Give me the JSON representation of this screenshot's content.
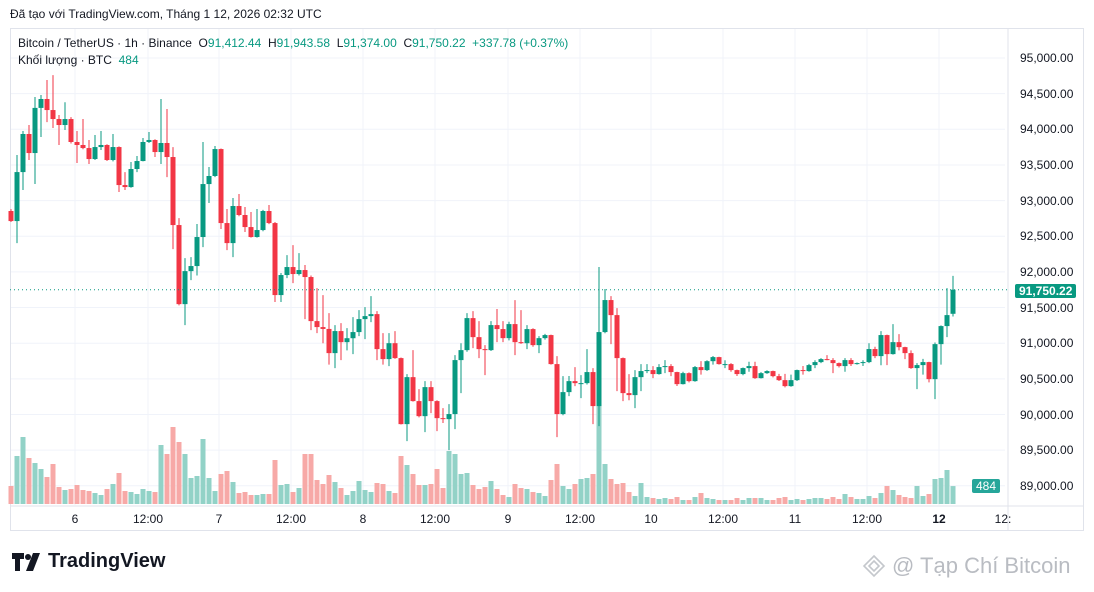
{
  "caption": "Đã tạo với TradingView.com, Tháng 1 12, 2026 02:32 UTC",
  "legend": {
    "symbol": "Bitcoin / TetherUS · 1h · Binance",
    "o_label": "O",
    "o": "91,412.44",
    "h_label": "H",
    "h": "91,943.58",
    "l_label": "L",
    "l": "91,374.00",
    "c_label": "C",
    "c": "91,750.22",
    "change": "+337.78 (+0.37%)",
    "volume_label": "Khối lượng · BTC",
    "volume": "484"
  },
  "last_price_tag": "91,750.22",
  "volume_tag": "484",
  "logo": "TradingView",
  "watermark": "@ Tạp Chí Bitcoin",
  "colors": {
    "up": "#089981",
    "down": "#f23645",
    "vol_up": "#92d2c7",
    "vol_down": "#f7a9a7"
  },
  "chart_data": {
    "type": "candlestick",
    "interval": "1h",
    "price_ticks": [
      "95,000.00",
      "94,500.00",
      "94,000.00",
      "93,500.00",
      "93,000.00",
      "92,500.00",
      "92,000.00",
      "91,500.00",
      "91,000.00",
      "90,500.00",
      "90,000.00",
      "89,500.00",
      "89,000.00"
    ],
    "price_tick_values": [
      95000,
      94500,
      94000,
      93500,
      93000,
      92500,
      92000,
      91500,
      91000,
      90500,
      90000,
      89500,
      89000
    ],
    "time_ticks": [
      "6",
      "12:00",
      "7",
      "12:00",
      "8",
      "12:00",
      "9",
      "12:00",
      "10",
      "12:00",
      "11",
      "12:00",
      "12",
      "12:"
    ],
    "last_price": 91750.22,
    "grid": true,
    "candles_ohlc": [
      [
        92854,
        92880,
        92700,
        92713
      ],
      [
        92713,
        93640,
        92404,
        93400
      ],
      [
        93400,
        93976,
        93148,
        93934
      ],
      [
        93934,
        94060,
        93569,
        93667
      ],
      [
        93667,
        94453,
        93232,
        94300
      ],
      [
        94300,
        94481,
        93892,
        94425
      ],
      [
        94425,
        94691,
        94100,
        94270
      ],
      [
        94270,
        94760,
        94018,
        94144
      ],
      [
        94144,
        94200,
        93780,
        94060
      ],
      [
        94060,
        94380,
        93990,
        94144
      ],
      [
        94144,
        94170,
        93800,
        93822
      ],
      [
        93822,
        93976,
        93527,
        93780
      ],
      [
        93780,
        94144,
        93720,
        93737
      ],
      [
        93737,
        93850,
        93513,
        93583
      ],
      [
        93583,
        93920,
        93570,
        93751
      ],
      [
        93751,
        93976,
        93710,
        93780
      ],
      [
        93780,
        93790,
        93555,
        93569
      ],
      [
        93569,
        93934,
        93550,
        93751
      ],
      [
        93751,
        93760,
        93120,
        93218
      ],
      [
        93218,
        93400,
        93148,
        93190
      ],
      [
        93190,
        93541,
        93180,
        93443
      ],
      [
        93443,
        93625,
        93400,
        93555
      ],
      [
        93555,
        93878,
        93550,
        93822
      ],
      [
        93822,
        93962,
        93808,
        93850
      ],
      [
        93850,
        93860,
        93611,
        93681
      ],
      [
        93681,
        94425,
        93513,
        93808
      ],
      [
        93808,
        94284,
        93330,
        93611
      ],
      [
        93611,
        93750,
        92320,
        92657
      ],
      [
        92657,
        92755,
        91530,
        91548
      ],
      [
        91548,
        92194,
        91254,
        92011
      ],
      [
        92011,
        92208,
        91885,
        92082
      ],
      [
        92082,
        92671,
        91950,
        92489
      ],
      [
        92489,
        93822,
        92348,
        93232
      ],
      [
        93232,
        93471,
        92966,
        93345
      ],
      [
        93345,
        93765,
        93330,
        93723
      ],
      [
        93723,
        93730,
        92601,
        92685
      ],
      [
        92685,
        92882,
        92306,
        92404
      ],
      [
        92404,
        93036,
        92208,
        92924
      ],
      [
        92924,
        93092,
        92780,
        92798
      ],
      [
        92798,
        92910,
        92559,
        92629
      ],
      [
        92629,
        92840,
        92480,
        92489
      ],
      [
        92489,
        92882,
        92480,
        92587
      ],
      [
        92587,
        92870,
        92570,
        92854
      ],
      [
        92854,
        92938,
        92670,
        92685
      ],
      [
        92685,
        92700,
        91577,
        91675
      ],
      [
        91675,
        91985,
        91577,
        91956
      ],
      [
        91956,
        92236,
        91913,
        92068
      ],
      [
        92068,
        92376,
        91843,
        91970
      ],
      [
        91970,
        92264,
        91950,
        92026
      ],
      [
        92026,
        92096,
        91338,
        91928
      ],
      [
        91928,
        91950,
        91184,
        91310
      ],
      [
        91310,
        91773,
        91142,
        91226
      ],
      [
        91226,
        91675,
        91000,
        91200
      ],
      [
        91200,
        91422,
        90700,
        90861
      ],
      [
        90861,
        91254,
        90650,
        91170
      ],
      [
        91170,
        91282,
        90763,
        91015
      ],
      [
        91015,
        91212,
        90900,
        91070
      ],
      [
        91070,
        91366,
        90847,
        91156
      ],
      [
        91156,
        91464,
        91100,
        91338
      ],
      [
        91338,
        91506,
        91057,
        91380
      ],
      [
        91380,
        91660,
        91296,
        91408
      ],
      [
        91408,
        91450,
        90763,
        90917
      ],
      [
        90917,
        91142,
        90700,
        90777
      ],
      [
        90777,
        91142,
        90679,
        91000
      ],
      [
        91000,
        91170,
        90780,
        90791
      ],
      [
        90791,
        90800,
        89860,
        89865
      ],
      [
        89865,
        90567,
        89626,
        90524
      ],
      [
        90524,
        90903,
        90180,
        90188
      ],
      [
        90188,
        90356,
        89960,
        89977
      ],
      [
        89977,
        90468,
        89753,
        90384
      ],
      [
        90384,
        90468,
        90020,
        90188
      ],
      [
        90188,
        90200,
        89767,
        89949
      ],
      [
        89949,
        90090,
        89880,
        89935
      ],
      [
        89935,
        90146,
        89500,
        90006
      ],
      [
        90006,
        90833,
        89795,
        90763
      ],
      [
        90763,
        91000,
        90300,
        90903
      ],
      [
        90903,
        91422,
        90880,
        91352
      ],
      [
        91352,
        91450,
        90931,
        91085
      ],
      [
        91085,
        91310,
        90791,
        90917
      ],
      [
        90917,
        90973,
        90553,
        90903
      ],
      [
        90903,
        91310,
        90890,
        91254
      ],
      [
        91254,
        91479,
        91015,
        91198
      ],
      [
        91198,
        91310,
        91015,
        91071
      ],
      [
        91071,
        91300,
        91040,
        91268
      ],
      [
        91268,
        91605,
        90833,
        91015
      ],
      [
        91015,
        91464,
        90990,
        91000
      ],
      [
        91000,
        91254,
        90917,
        91198
      ],
      [
        91198,
        91210,
        90950,
        90973
      ],
      [
        90973,
        91100,
        90861,
        91071
      ],
      [
        91071,
        91130,
        91050,
        91114
      ],
      [
        91114,
        91120,
        90700,
        90707
      ],
      [
        90707,
        90819,
        89682,
        90006
      ],
      [
        90006,
        90538,
        89990,
        90314
      ],
      [
        90314,
        90540,
        90258,
        90468
      ],
      [
        90468,
        90665,
        90398,
        90440
      ],
      [
        90440,
        90552,
        90230,
        90440
      ],
      [
        90440,
        90917,
        90420,
        90595
      ],
      [
        90595,
        90650,
        89865,
        90118
      ],
      [
        90118,
        92068,
        89837,
        91156
      ],
      [
        91156,
        91760,
        91140,
        91605
      ],
      [
        91605,
        91660,
        90987,
        91394
      ],
      [
        91394,
        91492,
        90328,
        90791
      ],
      [
        90791,
        90800,
        90188,
        90300
      ],
      [
        90300,
        90567,
        90200,
        90272
      ],
      [
        90272,
        90623,
        90090,
        90524
      ],
      [
        90524,
        90707,
        90328,
        90609
      ],
      [
        90609,
        90707,
        90580,
        90623
      ],
      [
        90623,
        90679,
        90510,
        90567
      ],
      [
        90567,
        90707,
        90560,
        90665
      ],
      [
        90665,
        90763,
        90580,
        90679
      ],
      [
        90679,
        90707,
        90538,
        90595
      ],
      [
        90595,
        90600,
        90400,
        90426
      ],
      [
        90426,
        90600,
        90420,
        90580
      ],
      [
        90580,
        90590,
        90450,
        90468
      ],
      [
        90468,
        90680,
        90460,
        90665
      ],
      [
        90665,
        90748,
        90560,
        90623
      ],
      [
        90623,
        90760,
        90610,
        90748
      ],
      [
        90748,
        90820,
        90700,
        90805
      ],
      [
        90805,
        90810,
        90700,
        90707
      ],
      [
        90707,
        90760,
        90650,
        90707
      ],
      [
        90707,
        90720,
        90600,
        90623
      ],
      [
        90623,
        90630,
        90540,
        90567
      ],
      [
        90567,
        90660,
        90550,
        90651
      ],
      [
        90651,
        90740,
        90600,
        90679
      ],
      [
        90679,
        90740,
        90500,
        90510
      ],
      [
        90510,
        90595,
        90505,
        90580
      ],
      [
        90580,
        90620,
        90570,
        90609
      ],
      [
        90609,
        90615,
        90520,
        90538
      ],
      [
        90538,
        90570,
        90470,
        90482
      ],
      [
        90482,
        90570,
        90380,
        90398
      ],
      [
        90398,
        90560,
        90390,
        90482
      ],
      [
        90482,
        90630,
        90470,
        90623
      ],
      [
        90623,
        90680,
        90560,
        90609
      ],
      [
        90609,
        90710,
        90600,
        90693
      ],
      [
        90693,
        90760,
        90650,
        90735
      ],
      [
        90735,
        90790,
        90720,
        90777
      ],
      [
        90777,
        90833,
        90760,
        90763
      ],
      [
        90763,
        90790,
        90580,
        90721
      ],
      [
        90721,
        90730,
        90660,
        90679
      ],
      [
        90679,
        90790,
        90600,
        90763
      ],
      [
        90763,
        90790,
        90680,
        90707
      ],
      [
        90707,
        90730,
        90700,
        90721
      ],
      [
        90721,
        90760,
        90680,
        90735
      ],
      [
        90735,
        91000,
        90720,
        90918
      ],
      [
        90918,
        90950,
        90790,
        90819
      ],
      [
        90819,
        91170,
        90690,
        91114
      ],
      [
        91114,
        91120,
        90693,
        90847
      ],
      [
        90847,
        91268,
        90840,
        91015
      ],
      [
        91015,
        91128,
        90900,
        90945
      ],
      [
        90945,
        90950,
        90777,
        90861
      ],
      [
        90861,
        90900,
        90640,
        90651
      ],
      [
        90651,
        90720,
        90356,
        90693
      ],
      [
        90693,
        90780,
        90560,
        90735
      ],
      [
        90735,
        90740,
        90450,
        90496
      ],
      [
        90496,
        91010,
        90216,
        90987
      ],
      [
        90987,
        91250,
        90700,
        91240
      ],
      [
        91240,
        91773,
        91085,
        91394
      ],
      [
        91412.44,
        91943.58,
        91374.0,
        91750.22
      ]
    ],
    "volume": [
      486,
      1296,
      1809,
      1242,
      1107,
      945,
      729,
      1080,
      459,
      378,
      405,
      513,
      378,
      351,
      297,
      243,
      405,
      540,
      837,
      351,
      324,
      270,
      405,
      351,
      324,
      1593,
      1350,
      2079,
      1674,
      1350,
      702,
      756,
      1755,
      702,
      351,
      810,
      891,
      594,
      297,
      324,
      243,
      243,
      270,
      270,
      1188,
      513,
      540,
      324,
      432,
      1350,
      1350,
      648,
      540,
      783,
      594,
      432,
      243,
      351,
      621,
      378,
      324,
      567,
      540,
      351,
      297,
      1296,
      1053,
      810,
      513,
      513,
      540,
      945,
      432,
      1431,
      1350,
      810,
      837,
      513,
      405,
      459,
      621,
      405,
      243,
      189,
      540,
      432,
      405,
      324,
      297,
      216,
      648,
      1080,
      486,
      405,
      540,
      675,
      702,
      810,
      2800,
      1080,
      675,
      540,
      567,
      324,
      216,
      567,
      189,
      162,
      135,
      162,
      135,
      189,
      108,
      108,
      189,
      297,
      162,
      135,
      108,
      108,
      108,
      162,
      108,
      162,
      162,
      162,
      108,
      108,
      162,
      189,
      108,
      135,
      108,
      135,
      162,
      162,
      135,
      189,
      135,
      270,
      189,
      135,
      135,
      216,
      162,
      297,
      486,
      378,
      243,
      189,
      162,
      486,
      216,
      270,
      675,
      702,
      918,
      484
    ]
  }
}
